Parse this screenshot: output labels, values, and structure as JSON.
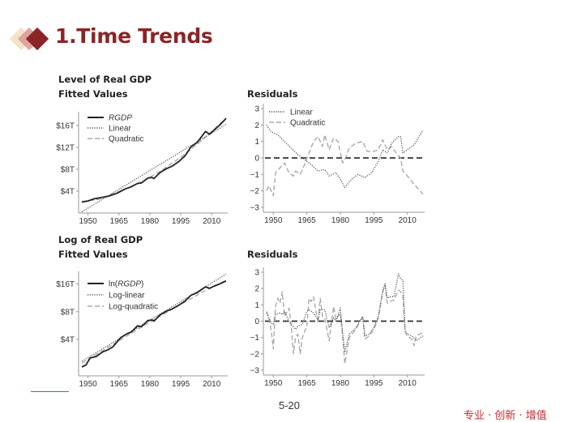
{
  "header": {
    "title": "1.Time Trends",
    "logo_colors": [
      "#f3e3c8",
      "#dc9a9a",
      "#8b2426"
    ]
  },
  "footer": {
    "page_number": "5-20",
    "slogan": "专业 · 创新 · 增值",
    "slogan_color": "#d12a2a"
  },
  "chart_data": [
    {
      "id": "level",
      "type": "line",
      "title": "Level of Real GDP",
      "subtitle": "Fitted Values",
      "xlabel": "",
      "ylabel": "",
      "xlim": [
        1947,
        2017
      ],
      "ylim_units": "trillions of dollars",
      "ylim": [
        0,
        18.5
      ],
      "x_ticks": [
        1950,
        1965,
        1980,
        1995,
        2010
      ],
      "y_ticks": [
        {
          "v": 4,
          "label": "$4T"
        },
        {
          "v": 8,
          "label": "$8T"
        },
        {
          "v": 12,
          "label": "$12T"
        },
        {
          "v": 16,
          "label": "$16T"
        }
      ],
      "legend": "top-left",
      "series": [
        {
          "name": "RGDP",
          "italic": true,
          "style": "solid",
          "color": "#222222",
          "x": [
            1947,
            1950,
            1953,
            1956,
            1960,
            1964,
            1968,
            1971,
            1974,
            1976,
            1979,
            1981,
            1982,
            1985,
            1988,
            1991,
            1994,
            1997,
            2000,
            2003,
            2006,
            2007,
            2009,
            2011,
            2014,
            2017
          ],
          "y": [
            2.0,
            2.2,
            2.6,
            2.8,
            3.1,
            3.6,
            4.4,
            4.8,
            5.4,
            5.5,
            6.4,
            6.5,
            6.3,
            7.4,
            8.1,
            8.6,
            9.4,
            10.4,
            12.1,
            12.9,
            14.4,
            14.9,
            14.4,
            15.1,
            16.1,
            17.3
          ]
        },
        {
          "name": "Linear",
          "style": "dotted",
          "color": "#555555",
          "x": [
            1947,
            2017
          ],
          "y": [
            0.2,
            16.2
          ]
        },
        {
          "name": "Quadratic",
          "style": "dashed",
          "color": "#aaaaaa",
          "x": [
            1947,
            1955,
            1965,
            1975,
            1985,
            1995,
            2005,
            2017
          ],
          "y": [
            2.1,
            2.5,
            3.9,
            5.5,
            7.6,
            10.2,
            13.2,
            17.3
          ]
        }
      ]
    },
    {
      "id": "level-resid",
      "type": "line",
      "title": "Residuals",
      "xlim": [
        1947,
        2017
      ],
      "ylim": [
        -3.3,
        3.3
      ],
      "x_ticks": [
        1950,
        1965,
        1980,
        1995,
        2010
      ],
      "y_ticks": [
        {
          "v": 3,
          "label": "3"
        },
        {
          "v": 2,
          "label": "2"
        },
        {
          "v": 1,
          "label": "1"
        },
        {
          "v": 0,
          "label": "0"
        },
        {
          "v": -1,
          "label": "−1"
        },
        {
          "v": -2,
          "label": "−2"
        },
        {
          "v": -3,
          "label": "−3"
        }
      ],
      "zero_line": true,
      "legend": "top-left",
      "series": [
        {
          "name": "Linear",
          "style": "dotted",
          "color": "#555555",
          "x": [
            1947,
            1949,
            1952,
            1955,
            1958,
            1961,
            1964,
            1967,
            1970,
            1973,
            1975,
            1978,
            1980,
            1982,
            1985,
            1988,
            1991,
            1994,
            1997,
            1999,
            2001,
            2003,
            2006,
            2007,
            2008,
            2010,
            2013,
            2017
          ],
          "y": [
            2.0,
            1.6,
            1.4,
            1.0,
            0.6,
            0.2,
            -0.1,
            -0.4,
            -0.8,
            -0.7,
            -1.1,
            -0.9,
            -1.3,
            -1.8,
            -1.3,
            -1.0,
            -1.2,
            -0.9,
            -0.2,
            0.5,
            0.3,
            0.9,
            1.3,
            1.3,
            0.3,
            0.5,
            0.8,
            1.7
          ]
        },
        {
          "name": "Quadratic",
          "style": "dashed",
          "color": "#aaaaaa",
          "x": [
            1947,
            1948,
            1950,
            1951,
            1953,
            1955,
            1957,
            1959,
            1960,
            1962,
            1964,
            1966,
            1968,
            1970,
            1972,
            1973,
            1975,
            1977,
            1979,
            1981,
            1982,
            1984,
            1987,
            1990,
            1992,
            1995,
            1997,
            1999,
            2001,
            2003,
            2005,
            2007,
            2008,
            2010,
            2013,
            2017
          ],
          "y": [
            -2.0,
            -1.7,
            -2.3,
            -0.9,
            -0.6,
            -0.3,
            -0.9,
            -1.1,
            -0.8,
            -1.0,
            -0.4,
            0.3,
            1.0,
            1.3,
            0.7,
            1.4,
            0.5,
            1.2,
            1.0,
            -0.3,
            -0.1,
            0.6,
            0.9,
            1.0,
            0.4,
            0.4,
            0.5,
            1.1,
            0.5,
            0.7,
            0.3,
            0.0,
            -0.8,
            -1.1,
            -1.6,
            -2.2
          ]
        }
      ]
    },
    {
      "id": "log",
      "type": "line",
      "title": "Log of Real GDP",
      "subtitle": "Fitted Values",
      "xlim": [
        1947,
        2017
      ],
      "yscale": "log2",
      "ylim": [
        1.6,
        22
      ],
      "x_ticks": [
        1950,
        1965,
        1980,
        1995,
        2010
      ],
      "y_ticks": [
        {
          "v": 4,
          "label": "$4T"
        },
        {
          "v": 8,
          "label": "$8T"
        },
        {
          "v": 16,
          "label": "$16T"
        }
      ],
      "legend": "top-left",
      "series": [
        {
          "name": "ln(RGDP)",
          "italic": true,
          "style": "solid",
          "color": "#222222",
          "x": [
            1947,
            1949,
            1951,
            1954,
            1957,
            1960,
            1962,
            1966,
            1969,
            1971,
            1974,
            1976,
            1979,
            1981,
            1982,
            1985,
            1988,
            1991,
            1994,
            1997,
            2000,
            2003,
            2006,
            2007,
            2009,
            2011,
            2014,
            2017
          ],
          "y": [
            2.0,
            2.1,
            2.5,
            2.6,
            2.9,
            3.1,
            3.3,
            4.2,
            4.6,
            4.8,
            5.6,
            5.5,
            6.4,
            6.5,
            6.3,
            7.4,
            8.1,
            8.6,
            9.4,
            10.4,
            12.1,
            12.9,
            14.4,
            14.9,
            14.4,
            15.1,
            16.1,
            17.3
          ]
        },
        {
          "name": "Log-linear",
          "style": "dotted",
          "color": "#555555",
          "x": [
            1947,
            2017
          ],
          "y": [
            2.3,
            20.5
          ]
        },
        {
          "name": "Log-quadratic",
          "style": "dashed",
          "color": "#aaaaaa",
          "x": [
            1947,
            1960,
            1975,
            1990,
            2005,
            2017
          ],
          "y": [
            2.2,
            3.3,
            5.3,
            8.3,
            12.9,
            17.6
          ]
        }
      ]
    },
    {
      "id": "log-resid",
      "type": "line",
      "title": "Residuals",
      "xlim": [
        1947,
        2017
      ],
      "ylim": [
        -3.3,
        3.3
      ],
      "x_ticks": [
        1950,
        1965,
        1980,
        1995,
        2010
      ],
      "y_ticks": [
        {
          "v": 3,
          "label": "3"
        },
        {
          "v": 2,
          "label": "2"
        },
        {
          "v": 1,
          "label": "1"
        },
        {
          "v": 0,
          "label": "0"
        },
        {
          "v": -1,
          "label": "−1"
        },
        {
          "v": -2,
          "label": "−2"
        },
        {
          "v": -3,
          "label": "−3"
        }
      ],
      "zero_line": true,
      "legend": "none",
      "series": [
        {
          "name": "Log-linear",
          "style": "dotted",
          "color": "#555555",
          "x": [
            1947,
            1948,
            1949,
            1950,
            1951,
            1953,
            1954,
            1955,
            1957,
            1958,
            1960,
            1961,
            1963,
            1965,
            1966,
            1968,
            1970,
            1971,
            1973,
            1975,
            1977,
            1978,
            1980,
            1981,
            1982,
            1984,
            1987,
            1990,
            1991,
            1993,
            1995,
            1997,
            1999,
            2000,
            2001,
            2002,
            2004,
            2006,
            2007,
            2008,
            2009,
            2010,
            2012,
            2014,
            2017
          ],
          "y": [
            0.5,
            0.2,
            -0.1,
            -0.2,
            0.4,
            0.5,
            0.4,
            0.6,
            0.0,
            -0.2,
            -0.5,
            -0.3,
            -0.2,
            0.6,
            0.7,
            0.5,
            0.1,
            0.7,
            0.7,
            -0.4,
            0.2,
            0.0,
            0.8,
            -0.7,
            -1.9,
            -0.8,
            -0.4,
            0.3,
            -0.9,
            -0.8,
            -0.4,
            0.3,
            1.9,
            2.3,
            1.4,
            1.5,
            1.5,
            2.9,
            2.6,
            2.5,
            -0.5,
            -0.8,
            -0.9,
            -1.2,
            -0.9
          ]
        },
        {
          "name": "Log-quadratic",
          "style": "dashed",
          "color": "#aaaaaa",
          "x": [
            1947,
            1948,
            1949,
            1950,
            1951,
            1952,
            1953,
            1954,
            1955,
            1957,
            1958,
            1959,
            1960,
            1961,
            1962,
            1963,
            1965,
            1966,
            1967,
            1968,
            1970,
            1971,
            1972,
            1973,
            1975,
            1977,
            1978,
            1980,
            1981,
            1982,
            1984,
            1987,
            1990,
            1991,
            1993,
            1995,
            1997,
            1999,
            2000,
            2001,
            2002,
            2004,
            2006,
            2007,
            2008,
            2009,
            2010,
            2012,
            2013,
            2014,
            2017
          ],
          "y": [
            0.6,
            0.2,
            -0.5,
            -1.7,
            0.9,
            1.4,
            1.1,
            1.8,
            0.3,
            0.8,
            -0.2,
            -2.0,
            -1.0,
            -0.8,
            -2.0,
            -1.0,
            -0.3,
            1.4,
            1.2,
            1.5,
            -0.1,
            1.4,
            0.3,
            0.2,
            -1.2,
            0.9,
            0.1,
            0.5,
            -0.8,
            -2.6,
            -1.0,
            -0.5,
            0.3,
            -1.1,
            -0.9,
            -0.5,
            0.2,
            1.8,
            2.2,
            1.1,
            1.2,
            1.3,
            1.9,
            1.8,
            1.6,
            -0.7,
            -0.9,
            -1.1,
            -1.5,
            -0.9,
            -0.7
          ]
        }
      ]
    }
  ]
}
